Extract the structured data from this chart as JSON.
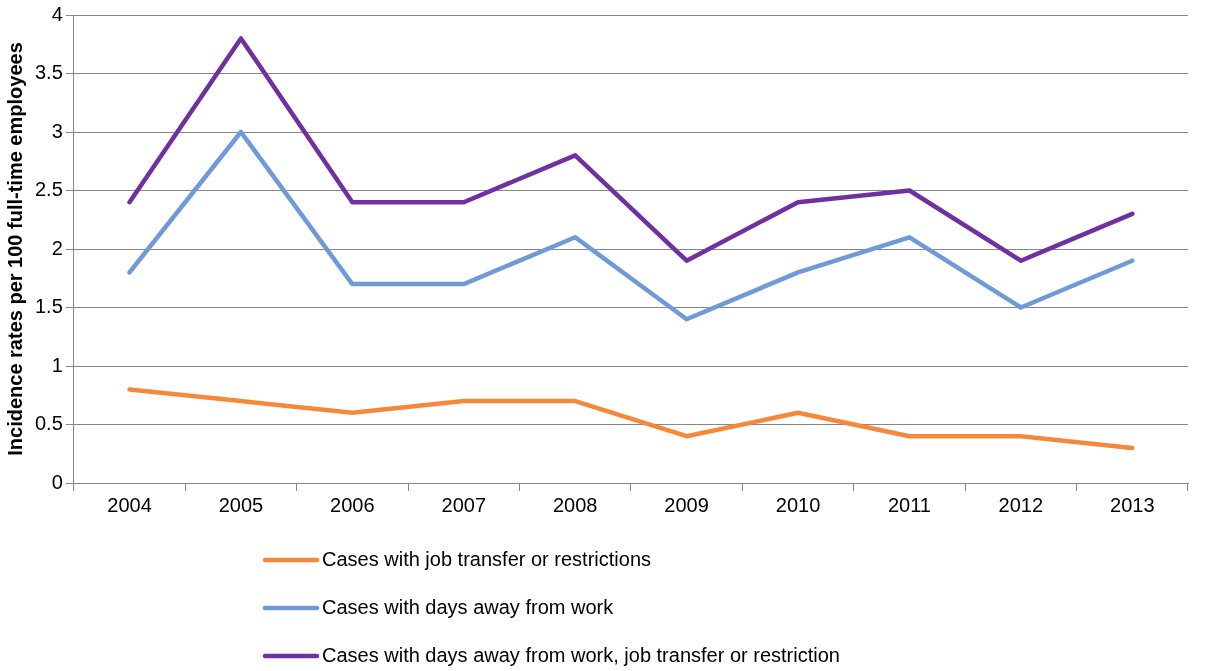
{
  "chart_data": {
    "type": "line",
    "ylabel": "Incidence rates per 100 full-time employees",
    "categories": [
      "2004",
      "2005",
      "2006",
      "2007",
      "2008",
      "2009",
      "2010",
      "2011",
      "2012",
      "2013"
    ],
    "series": [
      {
        "name": "Cases with job transfer or restrictions",
        "color": "#f7883b",
        "values": [
          0.8,
          0.7,
          0.6,
          0.7,
          0.7,
          0.4,
          0.6,
          0.4,
          0.4,
          0.3
        ]
      },
      {
        "name": "Cases with days away from work",
        "color": "#6f9ad8",
        "values": [
          1.8,
          3.0,
          1.7,
          1.7,
          2.1,
          1.4,
          1.8,
          2.1,
          1.5,
          1.9
        ]
      },
      {
        "name": "Cases with days away from work, job transfer or restriction",
        "color": "#7030a0",
        "values": [
          2.4,
          3.8,
          2.4,
          2.4,
          2.8,
          1.9,
          2.4,
          2.5,
          1.9,
          2.3
        ]
      }
    ],
    "ylim": [
      0,
      4
    ],
    "yticks": [
      0,
      0.5,
      1,
      1.5,
      2,
      2.5,
      3,
      3.5,
      4
    ],
    "grid": "y",
    "legend": "bottom",
    "marker": "none",
    "line_style": "solid"
  }
}
